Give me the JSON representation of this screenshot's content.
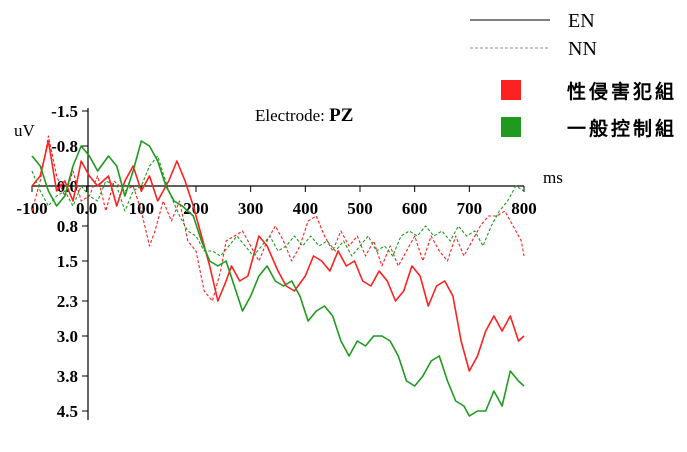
{
  "chart_data": {
    "type": "line",
    "title_prefix": "Electrode: ",
    "title_electrode": "PZ",
    "xlabel": "ms",
    "ylabel": "uV",
    "xlim": [
      -100,
      800
    ],
    "ylim": [
      -2.0,
      4.9
    ],
    "y_inverted": true,
    "x_ticks": [
      -100,
      0,
      100,
      200,
      300,
      400,
      500,
      600,
      700,
      800
    ],
    "x_tick_labels": [
      "-100",
      "0.0",
      "100",
      "200",
      "300",
      "400",
      "500",
      "600",
      "700",
      "800"
    ],
    "y_ticks": [
      -1.5,
      -0.8,
      0.0,
      0.8,
      1.5,
      2.3,
      3.0,
      3.8,
      4.5
    ],
    "y_tick_labels": [
      "-1.5",
      "-0.8",
      "0.0",
      "0.8",
      "1.5",
      "2.3",
      "3.0",
      "3.8",
      "4.5"
    ],
    "legend": {
      "line_styles": [
        {
          "label": "EN",
          "style": "solid"
        },
        {
          "label": "NN",
          "style": "dashed"
        }
      ],
      "groups": [
        {
          "label": "性侵害犯組",
          "color": "#ff2020"
        },
        {
          "label": "一般控制組",
          "color": "#1f9a1f"
        }
      ]
    },
    "series": [
      {
        "group": "性侵害犯組",
        "condition": "EN",
        "color": "#ff2020",
        "style": "solid",
        "points": [
          [
            -100,
            0.0
          ],
          [
            -85,
            -0.2
          ],
          [
            -70,
            -0.9
          ],
          [
            -55,
            0.1
          ],
          [
            -40,
            -0.1
          ],
          [
            -25,
            0.3
          ],
          [
            -10,
            -0.5
          ],
          [
            5,
            -0.2
          ],
          [
            20,
            0.0
          ],
          [
            40,
            -0.2
          ],
          [
            55,
            0.4
          ],
          [
            70,
            -0.1
          ],
          [
            85,
            -0.4
          ],
          [
            100,
            0.1
          ],
          [
            115,
            -0.2
          ],
          [
            130,
            0.3
          ],
          [
            150,
            -0.1
          ],
          [
            165,
            -0.5
          ],
          [
            180,
            -0.1
          ],
          [
            195,
            0.4
          ],
          [
            210,
            1.0
          ],
          [
            225,
            1.6
          ],
          [
            240,
            2.3
          ],
          [
            255,
            1.9
          ],
          [
            265,
            1.6
          ],
          [
            280,
            1.9
          ],
          [
            295,
            1.8
          ],
          [
            315,
            1.0
          ],
          [
            330,
            1.2
          ],
          [
            350,
            1.7
          ],
          [
            365,
            2.0
          ],
          [
            380,
            2.1
          ],
          [
            400,
            1.8
          ],
          [
            415,
            1.4
          ],
          [
            430,
            1.5
          ],
          [
            445,
            1.7
          ],
          [
            460,
            1.3
          ],
          [
            475,
            1.6
          ],
          [
            490,
            1.5
          ],
          [
            505,
            1.9
          ],
          [
            520,
            2.0
          ],
          [
            535,
            1.7
          ],
          [
            550,
            1.9
          ],
          [
            565,
            2.3
          ],
          [
            580,
            2.1
          ],
          [
            595,
            1.6
          ],
          [
            610,
            1.8
          ],
          [
            625,
            2.4
          ],
          [
            640,
            2.0
          ],
          [
            655,
            1.9
          ],
          [
            670,
            2.2
          ],
          [
            685,
            3.1
          ],
          [
            700,
            3.7
          ],
          [
            715,
            3.4
          ],
          [
            730,
            2.9
          ],
          [
            745,
            2.6
          ],
          [
            760,
            2.9
          ],
          [
            775,
            2.6
          ],
          [
            790,
            3.1
          ],
          [
            800,
            3.0
          ]
        ]
      },
      {
        "group": "性侵害犯組",
        "condition": "NN",
        "color": "#ff2020",
        "style": "dashed",
        "points": [
          [
            -100,
            0.5
          ],
          [
            -85,
            -0.1
          ],
          [
            -70,
            -1.0
          ],
          [
            -55,
            -0.2
          ],
          [
            -40,
            0.2
          ],
          [
            -25,
            -0.3
          ],
          [
            -10,
            0.3
          ],
          [
            5,
            0.2
          ],
          [
            20,
            -0.2
          ],
          [
            35,
            0.5
          ],
          [
            50,
            -0.1
          ],
          [
            70,
            0.1
          ],
          [
            85,
            0.0
          ],
          [
            100,
            0.5
          ],
          [
            115,
            1.2
          ],
          [
            125,
            0.9
          ],
          [
            140,
            0.3
          ],
          [
            155,
            0.7
          ],
          [
            170,
            0.3
          ],
          [
            185,
            1.1
          ],
          [
            200,
            1.3
          ],
          [
            215,
            2.1
          ],
          [
            230,
            2.3
          ],
          [
            245,
            1.7
          ],
          [
            255,
            1.1
          ],
          [
            270,
            1.0
          ],
          [
            285,
            0.9
          ],
          [
            300,
            1.2
          ],
          [
            315,
            1.5
          ],
          [
            330,
            1.1
          ],
          [
            345,
            0.8
          ],
          [
            360,
            1.1
          ],
          [
            375,
            1.5
          ],
          [
            390,
            1.2
          ],
          [
            405,
            0.7
          ],
          [
            420,
            0.6
          ],
          [
            435,
            1.0
          ],
          [
            450,
            1.3
          ],
          [
            465,
            0.9
          ],
          [
            480,
            1.2
          ],
          [
            495,
            1.0
          ],
          [
            510,
            1.4
          ],
          [
            525,
            1.1
          ],
          [
            540,
            1.6
          ],
          [
            555,
            1.2
          ],
          [
            570,
            1.6
          ],
          [
            585,
            1.3
          ],
          [
            600,
            1.0
          ],
          [
            615,
            1.5
          ],
          [
            630,
            1.0
          ],
          [
            645,
            1.3
          ],
          [
            660,
            1.5
          ],
          [
            675,
            1.0
          ],
          [
            690,
            1.4
          ],
          [
            705,
            1.1
          ],
          [
            720,
            0.8
          ],
          [
            735,
            0.6
          ],
          [
            750,
            0.6
          ],
          [
            765,
            0.5
          ],
          [
            780,
            0.8
          ],
          [
            795,
            1.1
          ],
          [
            800,
            1.4
          ]
        ]
      },
      {
        "group": "一般控制組",
        "condition": "EN",
        "color": "#1f9a1f",
        "style": "solid",
        "points": [
          [
            -100,
            -0.6
          ],
          [
            -85,
            -0.4
          ],
          [
            -70,
            0.1
          ],
          [
            -55,
            0.4
          ],
          [
            -40,
            0.2
          ],
          [
            -25,
            -0.4
          ],
          [
            -10,
            -0.8
          ],
          [
            5,
            -0.6
          ],
          [
            20,
            -0.3
          ],
          [
            40,
            -0.6
          ],
          [
            55,
            -0.4
          ],
          [
            70,
            0.2
          ],
          [
            85,
            -0.3
          ],
          [
            100,
            -0.9
          ],
          [
            115,
            -0.8
          ],
          [
            130,
            -0.5
          ],
          [
            145,
            0.0
          ],
          [
            160,
            0.3
          ],
          [
            175,
            0.4
          ],
          [
            195,
            0.6
          ],
          [
            210,
            1.1
          ],
          [
            225,
            1.5
          ],
          [
            240,
            1.6
          ],
          [
            255,
            1.5
          ],
          [
            270,
            2.0
          ],
          [
            285,
            2.5
          ],
          [
            300,
            2.2
          ],
          [
            315,
            1.8
          ],
          [
            330,
            1.6
          ],
          [
            345,
            1.9
          ],
          [
            360,
            2.0
          ],
          [
            375,
            1.9
          ],
          [
            390,
            2.2
          ],
          [
            405,
            2.7
          ],
          [
            420,
            2.5
          ],
          [
            435,
            2.4
          ],
          [
            450,
            2.6
          ],
          [
            465,
            3.1
          ],
          [
            480,
            3.4
          ],
          [
            495,
            3.1
          ],
          [
            510,
            3.2
          ],
          [
            525,
            3.0
          ],
          [
            540,
            3.0
          ],
          [
            555,
            3.1
          ],
          [
            570,
            3.4
          ],
          [
            585,
            3.9
          ],
          [
            600,
            4.0
          ],
          [
            615,
            3.8
          ],
          [
            630,
            3.5
          ],
          [
            645,
            3.4
          ],
          [
            660,
            3.9
          ],
          [
            675,
            4.3
          ],
          [
            690,
            4.4
          ],
          [
            700,
            4.6
          ],
          [
            715,
            4.5
          ],
          [
            730,
            4.5
          ],
          [
            745,
            4.1
          ],
          [
            760,
            4.4
          ],
          [
            775,
            3.7
          ],
          [
            790,
            3.9
          ],
          [
            800,
            4.0
          ]
        ]
      },
      {
        "group": "一般控制組",
        "condition": "NN",
        "color": "#1f9a1f",
        "style": "dashed",
        "points": [
          [
            -100,
            -0.3
          ],
          [
            -85,
            0.1
          ],
          [
            -70,
            0.4
          ],
          [
            -55,
            0.2
          ],
          [
            -40,
            0.1
          ],
          [
            -25,
            0.4
          ],
          [
            -10,
            0.0
          ],
          [
            5,
            0.2
          ],
          [
            20,
            0.3
          ],
          [
            35,
            -0.1
          ],
          [
            55,
            0.0
          ],
          [
            70,
            0.5
          ],
          [
            85,
            0.1
          ],
          [
            100,
            0.0
          ],
          [
            115,
            -0.4
          ],
          [
            130,
            -0.6
          ],
          [
            150,
            0.1
          ],
          [
            170,
            0.6
          ],
          [
            185,
            0.9
          ],
          [
            200,
            1.0
          ],
          [
            215,
            1.3
          ],
          [
            230,
            1.3
          ],
          [
            245,
            1.4
          ],
          [
            260,
            1.2
          ],
          [
            275,
            1.0
          ],
          [
            290,
            1.2
          ],
          [
            305,
            1.4
          ],
          [
            320,
            1.2
          ],
          [
            335,
            1.0
          ],
          [
            350,
            1.3
          ],
          [
            365,
            1.2
          ],
          [
            380,
            1.0
          ],
          [
            395,
            1.2
          ],
          [
            410,
            1.0
          ],
          [
            425,
            1.2
          ],
          [
            440,
            1.1
          ],
          [
            455,
            1.3
          ],
          [
            470,
            1.1
          ],
          [
            485,
            1.4
          ],
          [
            500,
            1.2
          ],
          [
            515,
            1.0
          ],
          [
            530,
            1.3
          ],
          [
            545,
            1.2
          ],
          [
            560,
            1.4
          ],
          [
            575,
            1.0
          ],
          [
            590,
            0.9
          ],
          [
            605,
            1.0
          ],
          [
            620,
            0.8
          ],
          [
            635,
            1.0
          ],
          [
            650,
            0.9
          ],
          [
            665,
            1.1
          ],
          [
            680,
            0.8
          ],
          [
            695,
            1.0
          ],
          [
            710,
            0.9
          ],
          [
            725,
            1.2
          ],
          [
            740,
            0.8
          ],
          [
            755,
            0.5
          ],
          [
            770,
            0.3
          ],
          [
            785,
            0.0
          ],
          [
            800,
            0.1
          ]
        ]
      }
    ]
  }
}
